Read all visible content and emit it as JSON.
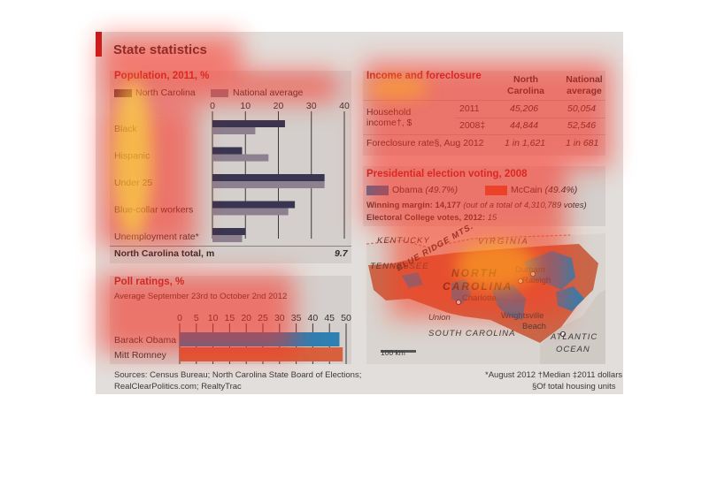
{
  "title": "State statistics",
  "population": {
    "heading": "Population, 2011, %",
    "legend": [
      "North Carolina",
      "National average"
    ],
    "ticks": [
      0,
      10,
      20,
      30,
      40
    ],
    "categories": [
      "Black",
      "Hispanic",
      "Under 25",
      "Blue-collar workers",
      "Unemployment rate*"
    ],
    "nc_values": [
      22,
      9,
      34,
      25,
      10
    ],
    "national_values": [
      13,
      17,
      34,
      23,
      9
    ],
    "total_label": "North Carolina total, m",
    "total_value": "9.7"
  },
  "poll": {
    "heading": "Poll ratings, %",
    "subheading": "Average September 23rd to October 2nd 2012",
    "ticks": [
      0,
      5,
      10,
      15,
      20,
      25,
      30,
      35,
      40,
      45,
      50
    ],
    "candidates": [
      "Barack Obama",
      "Mitt Romney"
    ],
    "values": [
      48,
      49
    ]
  },
  "income": {
    "heading": "Income and foreclosure",
    "col_nc": "North Carolina",
    "col_nat": "National average",
    "row1_label": "Household",
    "row1_label2": "income",
    "row1_label_suffix": "†, $",
    "year1": "2011",
    "year2": "2008‡",
    "nc_2011": "45,206",
    "nat_2011": "50,054",
    "nc_2008": "44,844",
    "nat_2008": "52,546",
    "foreclosure_label": "Foreclosure rate§, Aug 2012",
    "nc_foreclosure": "1 in 1,621",
    "nat_foreclosure": "1 in 681"
  },
  "election": {
    "heading": "Presidential election voting, 2008",
    "obama": "Obama",
    "obama_pct": "(49.7%)",
    "mccain": "McCain",
    "mccain_pct": "(49.4%)",
    "margin_label": "Winning margin: 14,177",
    "margin_note": "(out of a total of 4,310,789 votes)",
    "ec_label": "Electoral College votes, 2012:",
    "ec_value": "15"
  },
  "map": {
    "kentucky": "KENTUCKY",
    "virginia": "VIRGINIA",
    "tennessee": "TENNESSEE",
    "blue_ridge": "BLUE RIDGE MTS.",
    "north": "NORTH",
    "carolina": "CAROLINA",
    "durham": "Durham",
    "raleigh": "Raleigh",
    "charlotte": "Charlotte",
    "union": "Union",
    "wrightsville": "Wrightsville",
    "beach": "Beach",
    "south_carolina": "SOUTH CAROLINA",
    "atlantic": "ATLANTIC",
    "ocean": "OCEAN",
    "scale": "100 km"
  },
  "sources": {
    "line1": "Sources: Census Bureau; North Carolina State Board of Elections;",
    "line2": "RealClearPolitics.com; RealtyTrac"
  },
  "footnotes": {
    "line1": "*August 2012  †Median  ‡2011 dollars",
    "line2": "§Of total housing units"
  },
  "colors": {
    "nc_bar": "#3a3550",
    "national_bar": "#8d8190",
    "obama": "#2f7fb1",
    "romney": "#d8603d",
    "accent": "#c0181b"
  },
  "chart_data": [
    {
      "type": "bar",
      "title": "Population, 2011, %",
      "categories": [
        "Black",
        "Hispanic",
        "Under 25",
        "Blue-collar workers",
        "Unemployment rate*"
      ],
      "series": [
        {
          "name": "North Carolina",
          "values": [
            22,
            9,
            34,
            25,
            10
          ]
        },
        {
          "name": "National average",
          "values": [
            13,
            17,
            34,
            23,
            9
          ]
        }
      ],
      "xlim": [
        0,
        40
      ],
      "orientation": "horizontal"
    },
    {
      "type": "bar",
      "title": "Poll ratings, %",
      "subtitle": "Average September 23rd to October 2nd 2012",
      "categories": [
        "Barack Obama",
        "Mitt Romney"
      ],
      "values": [
        48,
        49
      ],
      "xlim": [
        0,
        50
      ],
      "orientation": "horizontal"
    },
    {
      "type": "table",
      "title": "Income and foreclosure",
      "columns": [
        "",
        "",
        "North Carolina",
        "National average"
      ],
      "rows": [
        [
          "Household income†, $",
          "2011",
          "45,206",
          "50,054"
        ],
        [
          "Household income†, $",
          "2008‡",
          "44,844",
          "52,546"
        ],
        [
          "Foreclosure rate§, Aug 2012",
          "",
          "1 in 1,621",
          "1 in 681"
        ]
      ]
    }
  ]
}
